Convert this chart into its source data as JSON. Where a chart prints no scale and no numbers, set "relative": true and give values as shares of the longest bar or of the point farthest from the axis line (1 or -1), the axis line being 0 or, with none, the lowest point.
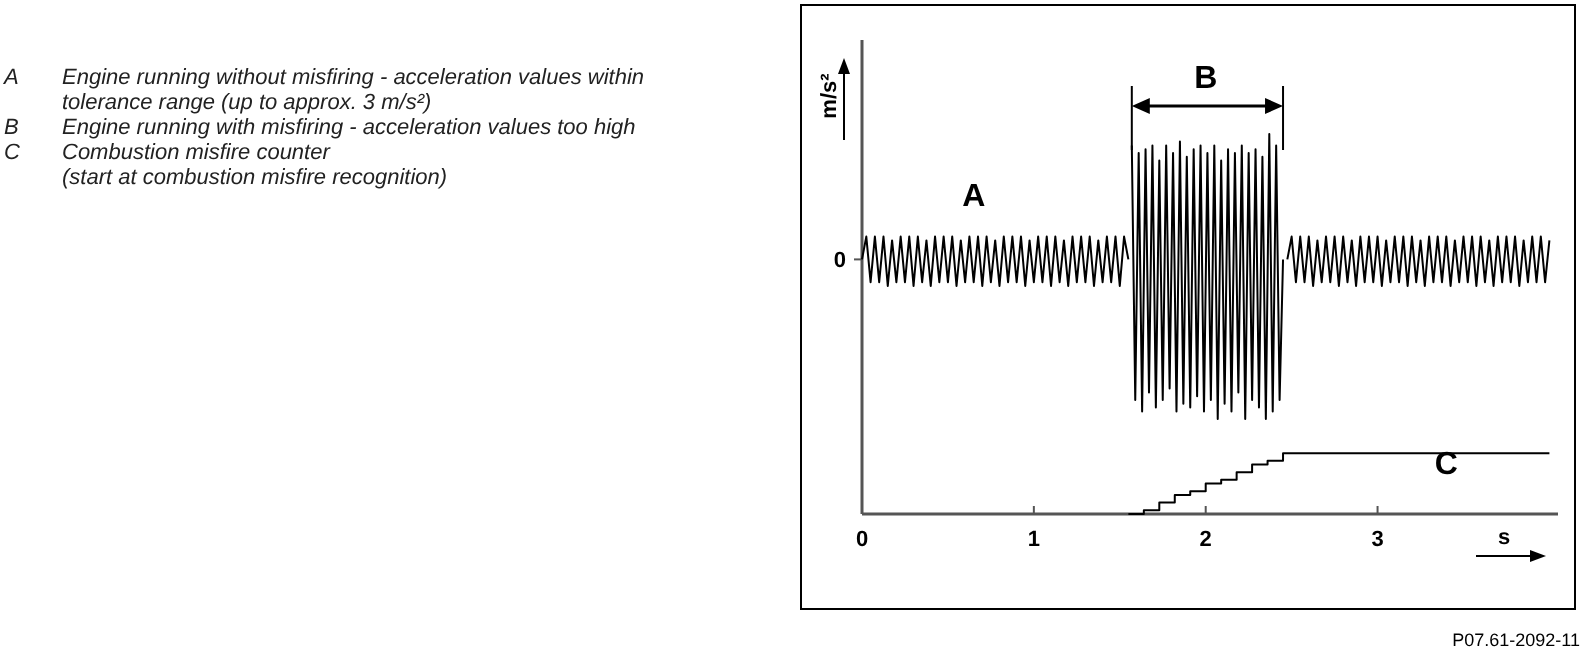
{
  "chart_data": {
    "type": "line",
    "relative": true,
    "xlabel": "s",
    "ylabel": "m/s²",
    "xlim": [
      0,
      4.05
    ],
    "xticks": [
      0,
      1,
      2,
      3
    ],
    "series": [
      {
        "color": "#000000",
        "x": [
          0,
          0.025,
          0.05,
          0.075,
          0.1,
          0.125,
          0.15,
          0.175,
          0.2,
          0.225,
          0.25,
          0.275,
          0.3,
          0.325,
          0.35,
          0.375,
          0.4,
          0.425,
          0.45,
          0.475,
          0.5,
          0.525,
          0.55,
          0.575,
          0.6,
          0.625,
          0.65,
          0.675,
          0.7,
          0.725,
          0.75,
          0.775,
          0.8,
          0.825,
          0.85,
          0.875,
          0.9,
          0.925,
          0.95,
          0.975,
          1,
          1.025,
          1.05,
          1.075,
          1.1,
          1.125,
          1.15,
          1.175,
          1.2,
          1.225,
          1.25,
          1.275,
          1.3,
          1.325,
          1.35,
          1.375,
          1.4,
          1.425,
          1.45,
          1.475,
          1.5,
          1.525,
          1.55
        ],
        "values": [
          0.67,
          0.73,
          0.61,
          0.73,
          0.61,
          0.73,
          0.6,
          0.72,
          0.61,
          0.73,
          0.61,
          0.73,
          0.6,
          0.73,
          0.61,
          0.72,
          0.6,
          0.73,
          0.61,
          0.73,
          0.61,
          0.73,
          0.6,
          0.72,
          0.61,
          0.73,
          0.61,
          0.73,
          0.6,
          0.73,
          0.61,
          0.72,
          0.6,
          0.73,
          0.61,
          0.73,
          0.61,
          0.73,
          0.6,
          0.72,
          0.61,
          0.73,
          0.61,
          0.73,
          0.6,
          0.73,
          0.61,
          0.72,
          0.6,
          0.73,
          0.61,
          0.73,
          0.61,
          0.73,
          0.6,
          0.72,
          0.61,
          0.73,
          0.61,
          0.73,
          0.6,
          0.73,
          0.67
        ]
      },
      {
        "color": "#000000",
        "x": [
          1.57,
          1.59,
          1.61,
          1.63,
          1.65,
          1.67,
          1.69,
          1.71,
          1.73,
          1.75,
          1.77,
          1.79,
          1.81,
          1.83,
          1.85,
          1.87,
          1.89,
          1.91,
          1.93,
          1.95,
          1.97,
          1.99,
          2.01,
          2.03,
          2.05,
          2.07,
          2.09,
          2.11,
          2.13,
          2.15,
          2.17,
          2.19,
          2.21,
          2.23,
          2.25,
          2.27,
          2.29,
          2.31,
          2.33,
          2.35,
          2.37,
          2.39,
          2.41,
          2.43,
          2.45
        ],
        "values": [
          0.97,
          0.3,
          0.95,
          0.27,
          0.96,
          0.32,
          0.97,
          0.28,
          0.93,
          0.3,
          0.97,
          0.33,
          0.95,
          0.27,
          0.98,
          0.29,
          0.94,
          0.28,
          0.96,
          0.31,
          0.97,
          0.27,
          0.95,
          0.3,
          0.97,
          0.25,
          0.93,
          0.29,
          0.96,
          0.27,
          0.95,
          0.32,
          0.97,
          0.25,
          0.95,
          0.3,
          0.96,
          0.28,
          0.94,
          0.25,
          1,
          0.27,
          0.97,
          0.3,
          0.67
        ]
      },
      {
        "color": "#000000",
        "x": [
          2.475,
          2.5,
          2.525,
          2.55,
          2.575,
          2.6,
          2.625,
          2.65,
          2.675,
          2.7,
          2.725,
          2.75,
          2.775,
          2.8,
          2.825,
          2.85,
          2.875,
          2.9,
          2.925,
          2.95,
          2.975,
          3,
          3.025,
          3.05,
          3.075,
          3.1,
          3.125,
          3.15,
          3.175,
          3.2,
          3.225,
          3.25,
          3.275,
          3.3,
          3.325,
          3.35,
          3.375,
          3.4,
          3.425,
          3.45,
          3.475,
          3.5,
          3.525,
          3.55,
          3.575,
          3.6,
          3.625,
          3.65,
          3.675,
          3.7,
          3.725,
          3.75,
          3.775,
          3.8,
          3.825,
          3.85,
          3.875,
          3.9,
          3.925,
          3.95,
          3.975,
          4
        ],
        "values": [
          0.67,
          0.73,
          0.61,
          0.73,
          0.61,
          0.73,
          0.6,
          0.72,
          0.61,
          0.73,
          0.61,
          0.73,
          0.6,
          0.73,
          0.61,
          0.72,
          0.6,
          0.73,
          0.61,
          0.73,
          0.61,
          0.73,
          0.6,
          0.72,
          0.61,
          0.73,
          0.61,
          0.73,
          0.6,
          0.73,
          0.61,
          0.72,
          0.6,
          0.73,
          0.61,
          0.73,
          0.61,
          0.73,
          0.6,
          0.72,
          0.61,
          0.73,
          0.61,
          0.73,
          0.6,
          0.73,
          0.61,
          0.72,
          0.6,
          0.73,
          0.61,
          0.73,
          0.61,
          0.73,
          0.6,
          0.72,
          0.61,
          0.73,
          0.61,
          0.73,
          0.61,
          0.72
        ]
      },
      {
        "type": "step",
        "color": "#000000",
        "x": [
          1.55,
          1.64,
          1.73,
          1.82,
          1.91,
          2.0,
          2.09,
          2.18,
          2.27,
          2.36,
          2.45,
          4.0
        ],
        "values": [
          0,
          0.01,
          0.03,
          0.05,
          0.06,
          0.08,
          0.09,
          0.11,
          0.13,
          0.14,
          0.16,
          0.16
        ]
      }
    ],
    "annotations": [
      "A Engine running without misfiring - acceleration values within\ntolerance range (up to approx. 3 m/s²)",
      "B Engine running with misfiring - acceleration values too high",
      "C Combustion misfire counter\n(start at combustion misfire recognition)",
      "A",
      "B",
      "C",
      {
        "text": "0",
        "x": 0,
        "y": 0.67
      },
      "P07.61-2092-11"
    ]
  }
}
